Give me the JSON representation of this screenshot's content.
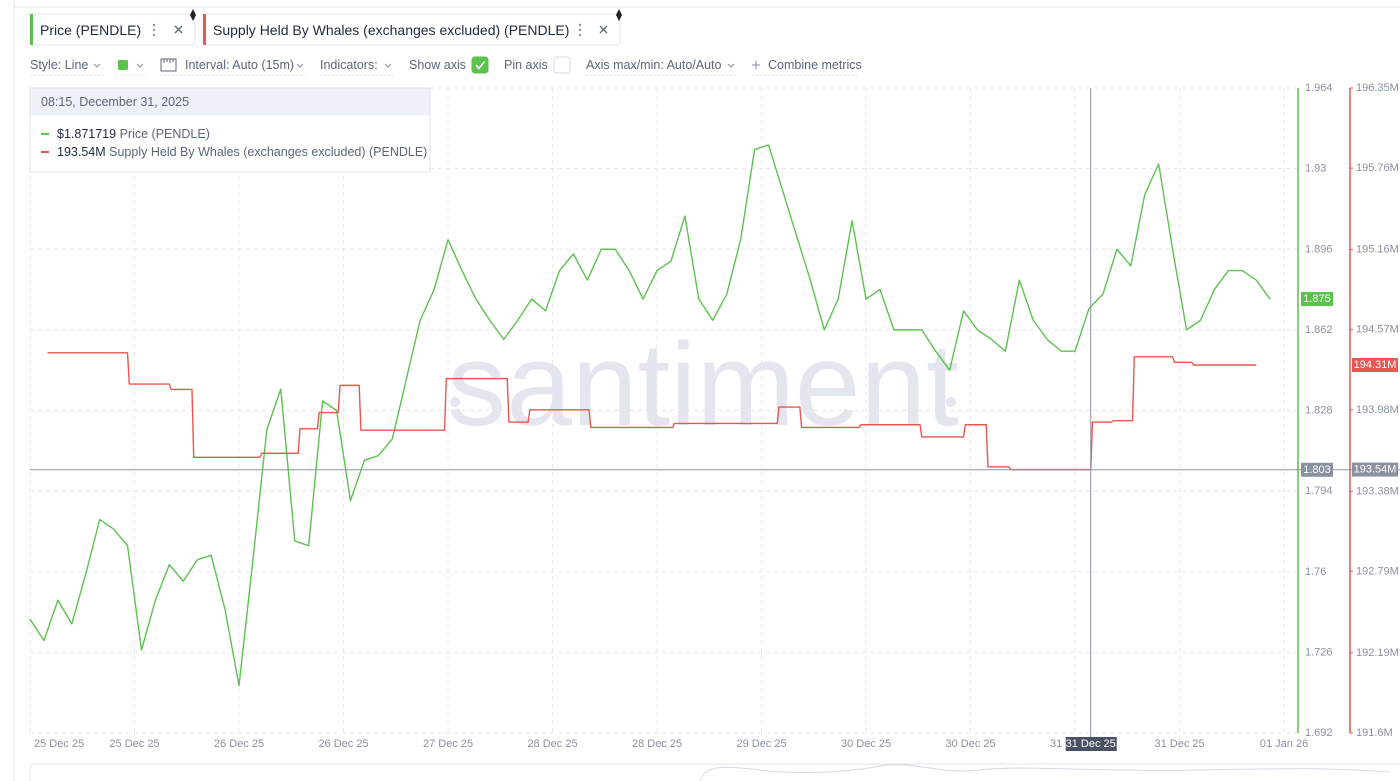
{
  "toolbar": {
    "style": "Style: Line",
    "interval": "Interval: Auto (15m)",
    "indicators": "Indicators:",
    "show_axis": "Show axis",
    "show_axis_checked": true,
    "pin_axis": "Pin axis",
    "pin_axis_checked": false,
    "axis_minmax": "Axis max/min: Auto/Auto",
    "combine": "Combine metrics"
  },
  "watermark": "santiment",
  "tooltip": {
    "title": "08:15, December 31, 2025",
    "values": [
      "$1.871719",
      "193.54M"
    ]
  },
  "chart_data": {
    "type": "line",
    "grid": true,
    "xlim": [
      "2025-12-25 00:00",
      "2026-01-01 14:00"
    ],
    "xticks": [
      {
        "value": "2025-12-25 00:00",
        "label": "25 Dec 25"
      },
      {
        "value": "2025-12-25 15:00",
        "label": "25 Dec 25"
      },
      {
        "value": "2025-12-26 06:00",
        "label": "26 Dec 25"
      },
      {
        "value": "2025-12-26 21:00",
        "label": "26 Dec 25"
      },
      {
        "value": "2025-12-27 12:00",
        "label": "27 Dec 25"
      },
      {
        "value": "2025-12-28 03:00",
        "label": "28 Dec 25"
      },
      {
        "value": "2025-12-28 18:00",
        "label": "28 Dec 25"
      },
      {
        "value": "2025-12-29 09:00",
        "label": "29 Dec 25"
      },
      {
        "value": "2025-12-30 00:00",
        "label": "30 Dec 25"
      },
      {
        "value": "2025-12-30 15:00",
        "label": "30 Dec 25"
      },
      {
        "value": "2025-12-31 06:00",
        "label": "31 Dec 25"
      },
      {
        "value": "2025-12-31 21:00",
        "label": "31 Dec 25"
      },
      {
        "value": "2026-01-01 12:00",
        "label": "01 Jan 26"
      }
    ],
    "ylim": [
      1.692,
      1.964
    ],
    "yticks": [
      1.692,
      1.726,
      1.76,
      1.794,
      1.828,
      1.862,
      1.896,
      1.93,
      1.964
    ],
    "y2lim": [
      191600000,
      196350000
    ],
    "y2ticks": [
      {
        "value": 191600000,
        "label": "191.6M"
      },
      {
        "value": 192190000,
        "label": "192.19M"
      },
      {
        "value": 192790000,
        "label": "192.79M"
      },
      {
        "value": 193380000,
        "label": "193.38M"
      },
      {
        "value": 193980000,
        "label": "193.98M"
      },
      {
        "value": 194570000,
        "label": "194.57M"
      },
      {
        "value": 195160000,
        "label": "195.16M"
      },
      {
        "value": 195760000,
        "label": "195.76M"
      },
      {
        "value": 196350000,
        "label": "196.35M"
      }
    ],
    "crosshair": {
      "x": "2025-12-31 08:15",
      "x_label": "31 Dec 25",
      "y": 1.803,
      "y2": {
        "value": 193540000,
        "label": "193.54M"
      }
    },
    "series": [
      {
        "name": "Price (PENDLE)",
        "color": "#5cc24e",
        "x": [
          "2025-12-25 00:00",
          "2025-12-25 02:00",
          "2025-12-25 04:00",
          "2025-12-25 06:00",
          "2025-12-25 08:00",
          "2025-12-25 10:00",
          "2025-12-25 12:00",
          "2025-12-25 14:00",
          "2025-12-25 16:00",
          "2025-12-25 18:00",
          "2025-12-25 20:00",
          "2025-12-25 22:00",
          "2025-12-26 00:00",
          "2025-12-26 02:00",
          "2025-12-26 04:00",
          "2025-12-26 06:00",
          "2025-12-26 08:00",
          "2025-12-26 10:00",
          "2025-12-26 12:00",
          "2025-12-26 14:00",
          "2025-12-26 16:00",
          "2025-12-26 18:00",
          "2025-12-26 20:00",
          "2025-12-26 22:00",
          "2025-12-27 00:00",
          "2025-12-27 02:00",
          "2025-12-27 04:00",
          "2025-12-27 06:00",
          "2025-12-27 08:00",
          "2025-12-27 10:00",
          "2025-12-27 12:00",
          "2025-12-27 14:00",
          "2025-12-27 16:00",
          "2025-12-27 18:00",
          "2025-12-27 20:00",
          "2025-12-27 22:00",
          "2025-12-28 00:00",
          "2025-12-28 02:00",
          "2025-12-28 04:00",
          "2025-12-28 06:00",
          "2025-12-28 08:00",
          "2025-12-28 10:00",
          "2025-12-28 12:00",
          "2025-12-28 14:00",
          "2025-12-28 16:00",
          "2025-12-28 18:00",
          "2025-12-28 20:00",
          "2025-12-28 22:00",
          "2025-12-29 00:00",
          "2025-12-29 02:00",
          "2025-12-29 04:00",
          "2025-12-29 06:00",
          "2025-12-29 08:00",
          "2025-12-29 10:00",
          "2025-12-29 12:00",
          "2025-12-29 14:00",
          "2025-12-29 16:00",
          "2025-12-29 18:00",
          "2025-12-29 20:00",
          "2025-12-29 22:00",
          "2025-12-30 00:00",
          "2025-12-30 02:00",
          "2025-12-30 04:00",
          "2025-12-30 06:00",
          "2025-12-30 08:00",
          "2025-12-30 10:00",
          "2025-12-30 12:00",
          "2025-12-30 14:00",
          "2025-12-30 16:00",
          "2025-12-30 18:00",
          "2025-12-30 20:00",
          "2025-12-30 22:00",
          "2025-12-31 00:00",
          "2025-12-31 02:00",
          "2025-12-31 04:00",
          "2025-12-31 06:00",
          "2025-12-31 08:00",
          "2025-12-31 10:00",
          "2025-12-31 12:00",
          "2025-12-31 14:00",
          "2025-12-31 16:00",
          "2025-12-31 18:00",
          "2025-12-31 20:00",
          "2025-12-31 22:00",
          "2026-01-01 00:00",
          "2026-01-01 02:00",
          "2026-01-01 04:00",
          "2026-01-01 06:00",
          "2026-01-01 08:00",
          "2026-01-01 10:00"
        ],
        "values": [
          1.74,
          1.731,
          1.748,
          1.738,
          1.759,
          1.782,
          1.778,
          1.771,
          1.727,
          1.748,
          1.763,
          1.756,
          1.765,
          1.767,
          1.744,
          1.712,
          1.765,
          1.82,
          1.837,
          1.773,
          1.771,
          1.832,
          1.828,
          1.79,
          1.807,
          1.809,
          1.816,
          1.841,
          1.866,
          1.879,
          1.9,
          1.887,
          1.875,
          1.866,
          1.858,
          1.866,
          1.875,
          1.87,
          1.887,
          1.894,
          1.883,
          1.896,
          1.896,
          1.887,
          1.875,
          1.887,
          1.891,
          1.91,
          1.875,
          1.866,
          1.877,
          1.9,
          1.938,
          1.94,
          1.921,
          1.902,
          1.883,
          1.862,
          1.875,
          1.908,
          1.875,
          1.879,
          1.862,
          1.862,
          1.862,
          1.853,
          1.845,
          1.87,
          1.862,
          1.858,
          1.853,
          1.883,
          1.866,
          1.858,
          1.853,
          1.853,
          1.871,
          1.877,
          1.896,
          1.889,
          1.919,
          1.932,
          1.896,
          1.862,
          1.866,
          1.879,
          1.887,
          1.887,
          1.883,
          1.875
        ]
      },
      {
        "name": "Supply Held By Whales (exchanges excluded) (PENDLE)",
        "color": "#e8574f",
        "axis": "y2",
        "last_value_label": "194.31M",
        "x": [
          "2025-12-25 02:30",
          "2025-12-25 14:00",
          "2025-12-25 14:15",
          "2025-12-25 20:00",
          "2025-12-25 20:15",
          "2025-12-25 23:15",
          "2025-12-25 23:30",
          "2025-12-26 09:00",
          "2025-12-26 09:15",
          "2025-12-26 14:30",
          "2025-12-26 14:45",
          "2025-12-26 17:15",
          "2025-12-26 17:30",
          "2025-12-26 20:15",
          "2025-12-26 20:30",
          "2025-12-26 23:15",
          "2025-12-26 23:30",
          "2025-12-27 11:30",
          "2025-12-27 11:45",
          "2025-12-27 20:30",
          "2025-12-27 20:45",
          "2025-12-27 23:30",
          "2025-12-27 23:45",
          "2025-12-28 08:15",
          "2025-12-28 08:30",
          "2025-12-28 20:15",
          "2025-12-28 20:30",
          "2025-12-29 11:15",
          "2025-12-29 11:30",
          "2025-12-29 14:30",
          "2025-12-29 14:45",
          "2025-12-29 23:00",
          "2025-12-29 23:15",
          "2025-12-30 07:45",
          "2025-12-30 08:00",
          "2025-12-30 14:00",
          "2025-12-30 14:15",
          "2025-12-30 17:15",
          "2025-12-30 17:30",
          "2025-12-30 20:30",
          "2025-12-30 20:45",
          "2025-12-31 08:15",
          "2025-12-31 08:30",
          "2025-12-31 11:15",
          "2025-12-31 11:30",
          "2025-12-31 14:15",
          "2025-12-31 14:30",
          "2025-12-31 20:00",
          "2025-12-31 20:15",
          "2025-12-31 22:45",
          "2025-12-31 23:00",
          "2026-01-01 08:00"
        ],
        "values": [
          194400000,
          194400000,
          194170000,
          194170000,
          194130000,
          194130000,
          193630000,
          193630000,
          193660000,
          193660000,
          193840000,
          193840000,
          193960000,
          193960000,
          194160000,
          194160000,
          193830000,
          193830000,
          194210000,
          194210000,
          193890000,
          193890000,
          193980000,
          193980000,
          193850000,
          193850000,
          193880000,
          193880000,
          194000000,
          194000000,
          193850000,
          193850000,
          193870000,
          193870000,
          193780000,
          193780000,
          193870000,
          193870000,
          193560000,
          193560000,
          193540000,
          193540000,
          193890000,
          193890000,
          193900000,
          193900000,
          194370000,
          194370000,
          194330000,
          194330000,
          194310000,
          194310000
        ]
      }
    ]
  }
}
